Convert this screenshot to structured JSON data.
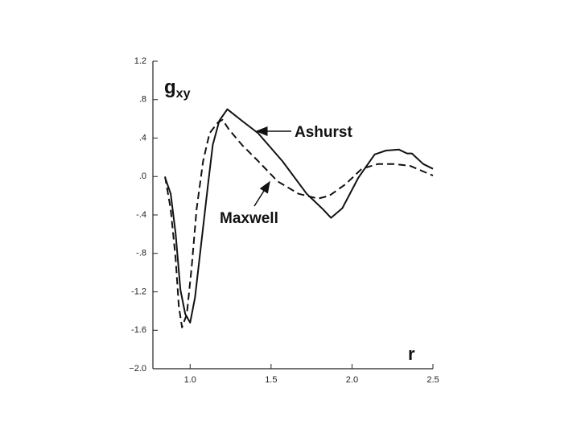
{
  "chart_data": {
    "type": "line",
    "y_label": "g",
    "y_label_sub": "xy",
    "x_label": "r",
    "annotations": [
      "Ashurst",
      "Maxwell"
    ],
    "xlim": [
      0.77,
      2.5
    ],
    "ylim": [
      -2.0,
      1.2
    ],
    "xticks": [
      {
        "value": 1.0,
        "label": "1.0"
      },
      1.5,
      {
        "value": 2.0,
        "label": "2.0"
      },
      2.5
    ],
    "yticks": [
      1.2,
      {
        "value": 0.8,
        "label": ".8"
      },
      {
        "value": 0.4,
        "label": ".4"
      },
      {
        "value": 0.0,
        "label": ".0"
      },
      {
        "value": -0.4,
        "label": "-.4"
      },
      {
        "value": -0.8,
        "label": "-.8"
      },
      -1.2,
      -1.6,
      {
        "value": -2.0,
        "label": "−2.0"
      }
    ],
    "series": [
      {
        "name": "Ashurst",
        "color": "#111111",
        "dash": "solid",
        "x": [
          0.845,
          0.88,
          0.91,
          0.94,
          0.97,
          1.0,
          1.03,
          1.07,
          1.11,
          1.14,
          1.18,
          1.23,
          1.32,
          1.42,
          1.57,
          1.72,
          1.82,
          1.87,
          1.94,
          2.04,
          2.14,
          2.21,
          2.29,
          2.34,
          2.37,
          2.44,
          2.5
        ],
        "values": [
          -0.01,
          -0.18,
          -0.59,
          -1.18,
          -1.43,
          -1.52,
          -1.26,
          -0.68,
          -0.09,
          0.33,
          0.58,
          0.7,
          0.58,
          0.45,
          0.16,
          -0.18,
          -0.34,
          -0.43,
          -0.33,
          -0.01,
          0.23,
          0.27,
          0.28,
          0.24,
          0.24,
          0.13,
          0.08
        ]
      },
      {
        "name": "Maxwell",
        "color": "#111111",
        "dash": "dashed",
        "x": [
          0.845,
          0.88,
          0.91,
          0.93,
          0.95,
          0.98,
          1.01,
          1.04,
          1.08,
          1.12,
          1.17,
          1.2,
          1.24,
          1.32,
          1.42,
          1.54,
          1.67,
          1.79,
          1.86,
          1.96,
          2.06,
          2.16,
          2.26,
          2.36,
          2.5
        ],
        "values": [
          0.0,
          -0.34,
          -0.85,
          -1.35,
          -1.57,
          -1.43,
          -0.93,
          -0.34,
          0.16,
          0.45,
          0.56,
          0.59,
          0.49,
          0.33,
          0.16,
          -0.05,
          -0.18,
          -0.23,
          -0.2,
          -0.08,
          0.08,
          0.13,
          0.13,
          0.11,
          0.01
        ]
      }
    ]
  }
}
